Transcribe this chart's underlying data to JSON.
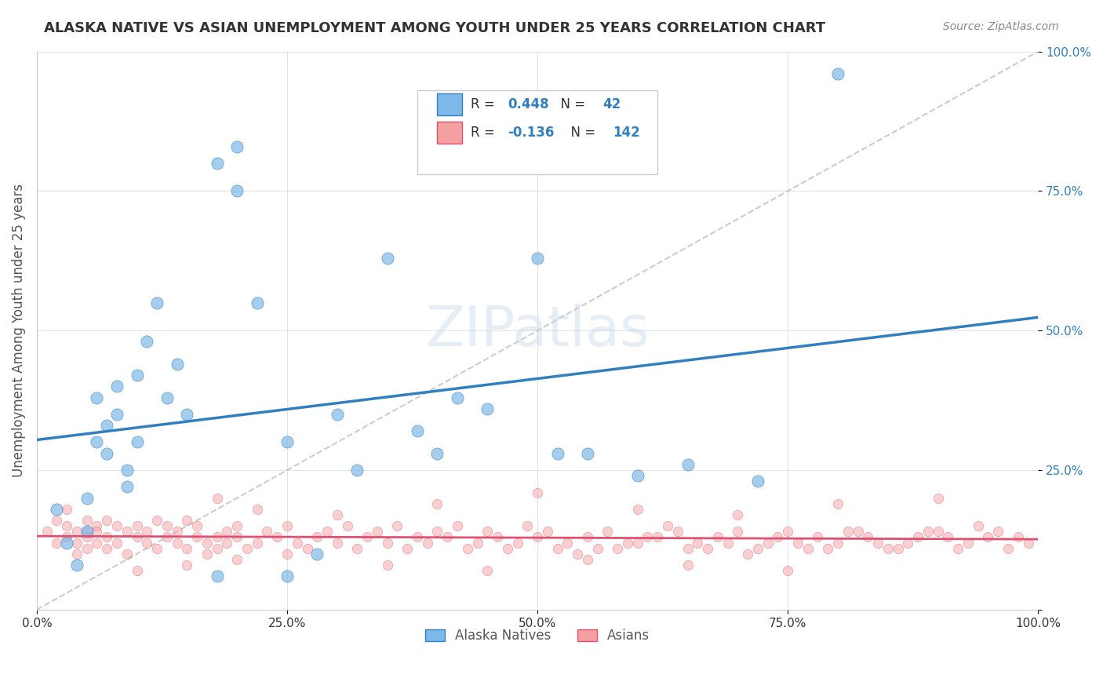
{
  "title": "ALASKA NATIVE VS ASIAN UNEMPLOYMENT AMONG YOUTH UNDER 25 YEARS CORRELATION CHART",
  "source": "Source: ZipAtlas.com",
  "ylabel": "Unemployment Among Youth under 25 years",
  "xlabel_ticks": [
    "0.0%",
    "100.0%"
  ],
  "ylabel_ticks": [
    "0.0%",
    "25.0%",
    "50.0%",
    "75.0%",
    "100.0%"
  ],
  "watermark": "ZIPatlas",
  "legend_line1": "R = 0.448   N =  42",
  "legend_line2": "R = -0.136   N = 142",
  "alaska_color": "#7EB8E8",
  "asian_color": "#F4A0A0",
  "alaska_line_color": "#3080C0",
  "asian_line_color": "#E05070",
  "alaska_R": 0.448,
  "alaska_N": 42,
  "asian_R": -0.136,
  "asian_N": 142,
  "background_color": "#FFFFFF",
  "grid_color": "#D0D8E8",
  "alaska_scatter_x": [
    0.02,
    0.03,
    0.04,
    0.05,
    0.05,
    0.06,
    0.06,
    0.07,
    0.07,
    0.08,
    0.08,
    0.09,
    0.09,
    0.1,
    0.1,
    0.11,
    0.12,
    0.13,
    0.14,
    0.15,
    0.18,
    0.2,
    0.2,
    0.22,
    0.25,
    0.3,
    0.35,
    0.38,
    0.4,
    0.42,
    0.45,
    0.5,
    0.52,
    0.55,
    0.18,
    0.25,
    0.28,
    0.32,
    0.6,
    0.65,
    0.72,
    0.8
  ],
  "alaska_scatter_y": [
    0.18,
    0.12,
    0.08,
    0.2,
    0.14,
    0.3,
    0.38,
    0.28,
    0.33,
    0.35,
    0.4,
    0.25,
    0.22,
    0.3,
    0.42,
    0.48,
    0.55,
    0.38,
    0.44,
    0.35,
    0.8,
    0.75,
    0.83,
    0.55,
    0.3,
    0.35,
    0.63,
    0.32,
    0.28,
    0.38,
    0.36,
    0.63,
    0.28,
    0.28,
    0.06,
    0.06,
    0.1,
    0.25,
    0.24,
    0.26,
    0.23,
    0.96
  ],
  "asian_scatter_x": [
    0.01,
    0.02,
    0.02,
    0.03,
    0.03,
    0.03,
    0.04,
    0.04,
    0.04,
    0.05,
    0.05,
    0.05,
    0.05,
    0.06,
    0.06,
    0.06,
    0.07,
    0.07,
    0.07,
    0.08,
    0.08,
    0.09,
    0.09,
    0.1,
    0.1,
    0.11,
    0.11,
    0.12,
    0.12,
    0.13,
    0.13,
    0.14,
    0.14,
    0.15,
    0.15,
    0.16,
    0.16,
    0.17,
    0.17,
    0.18,
    0.18,
    0.19,
    0.19,
    0.2,
    0.2,
    0.21,
    0.22,
    0.23,
    0.24,
    0.25,
    0.26,
    0.27,
    0.28,
    0.29,
    0.3,
    0.31,
    0.32,
    0.33,
    0.34,
    0.35,
    0.36,
    0.37,
    0.38,
    0.39,
    0.4,
    0.41,
    0.42,
    0.43,
    0.44,
    0.45,
    0.46,
    0.47,
    0.48,
    0.49,
    0.5,
    0.51,
    0.52,
    0.53,
    0.55,
    0.57,
    0.58,
    0.6,
    0.62,
    0.63,
    0.65,
    0.66,
    0.68,
    0.7,
    0.72,
    0.73,
    0.75,
    0.77,
    0.78,
    0.8,
    0.82,
    0.85,
    0.87,
    0.88,
    0.9,
    0.92,
    0.93,
    0.95,
    0.96,
    0.97,
    0.98,
    0.99,
    0.54,
    0.56,
    0.59,
    0.61,
    0.64,
    0.67,
    0.69,
    0.71,
    0.74,
    0.76,
    0.79,
    0.81,
    0.83,
    0.84,
    0.86,
    0.89,
    0.91,
    0.94,
    0.18,
    0.22,
    0.3,
    0.4,
    0.5,
    0.6,
    0.7,
    0.8,
    0.9,
    0.1,
    0.15,
    0.2,
    0.25,
    0.35,
    0.45,
    0.55,
    0.65,
    0.75
  ],
  "asian_scatter_y": [
    0.14,
    0.16,
    0.12,
    0.13,
    0.15,
    0.18,
    0.14,
    0.1,
    0.12,
    0.16,
    0.14,
    0.11,
    0.13,
    0.15,
    0.12,
    0.14,
    0.16,
    0.11,
    0.13,
    0.15,
    0.12,
    0.14,
    0.1,
    0.13,
    0.15,
    0.12,
    0.14,
    0.16,
    0.11,
    0.13,
    0.15,
    0.12,
    0.14,
    0.16,
    0.11,
    0.13,
    0.15,
    0.12,
    0.1,
    0.13,
    0.11,
    0.14,
    0.12,
    0.15,
    0.13,
    0.11,
    0.12,
    0.14,
    0.13,
    0.15,
    0.12,
    0.11,
    0.13,
    0.14,
    0.12,
    0.15,
    0.11,
    0.13,
    0.14,
    0.12,
    0.15,
    0.11,
    0.13,
    0.12,
    0.14,
    0.13,
    0.15,
    0.11,
    0.12,
    0.14,
    0.13,
    0.11,
    0.12,
    0.15,
    0.13,
    0.14,
    0.11,
    0.12,
    0.13,
    0.14,
    0.11,
    0.12,
    0.13,
    0.15,
    0.11,
    0.12,
    0.13,
    0.14,
    0.11,
    0.12,
    0.14,
    0.11,
    0.13,
    0.12,
    0.14,
    0.11,
    0.12,
    0.13,
    0.14,
    0.11,
    0.12,
    0.13,
    0.14,
    0.11,
    0.13,
    0.12,
    0.1,
    0.11,
    0.12,
    0.13,
    0.14,
    0.11,
    0.12,
    0.1,
    0.13,
    0.12,
    0.11,
    0.14,
    0.13,
    0.12,
    0.11,
    0.14,
    0.13,
    0.15,
    0.2,
    0.18,
    0.17,
    0.19,
    0.21,
    0.18,
    0.17,
    0.19,
    0.2,
    0.07,
    0.08,
    0.09,
    0.1,
    0.08,
    0.07,
    0.09,
    0.08,
    0.07
  ]
}
